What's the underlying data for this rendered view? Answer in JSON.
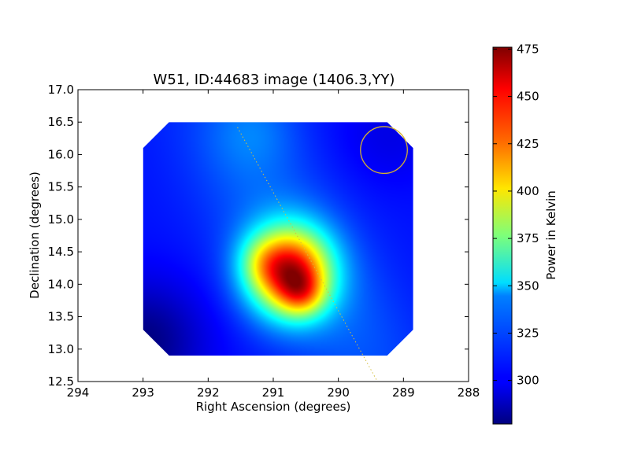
{
  "chart_data": {
    "type": "heatmap",
    "title": "W51, ID:44683 image (1406.3,YY)",
    "xlabel": "Right Ascension (degrees)",
    "ylabel": "Declination (degrees)",
    "xlim": [
      294,
      288
    ],
    "ylim": [
      12.5,
      17.0
    ],
    "x_ticks": [
      "294",
      "293",
      "292",
      "291",
      "290",
      "289",
      "288"
    ],
    "y_ticks": [
      "12.5",
      "13.0",
      "13.5",
      "14.0",
      "14.5",
      "15.0",
      "15.5",
      "16.0",
      "16.5",
      "17.0"
    ],
    "x_tick_values": [
      294,
      293,
      292,
      291,
      290,
      289,
      288
    ],
    "y_tick_values": [
      12.5,
      13.0,
      13.5,
      14.0,
      14.5,
      15.0,
      15.5,
      16.0,
      16.5,
      17.0
    ],
    "colormap": "jet",
    "colorbar": {
      "label": "Power in Kelvin",
      "range": [
        277,
        476
      ],
      "ticks": [
        "300",
        "325",
        "350",
        "375",
        "400",
        "425",
        "450",
        "475"
      ],
      "tick_values": [
        300,
        325,
        350,
        375,
        400,
        425,
        450,
        475
      ]
    },
    "map": {
      "ra_range": [
        293.0,
        288.85
      ],
      "dec_range": [
        12.9,
        16.5
      ],
      "corner_cut_degrees": 0.4,
      "background_level": 305,
      "low_region": {
        "ra": 293.0,
        "dec": 13.1,
        "level": 277
      },
      "peak": {
        "ra": 290.75,
        "dec": 14.2,
        "level": 470
      },
      "secondary_peak": {
        "ra": 290.55,
        "dec": 13.85,
        "level": 440
      }
    },
    "beam_circle": {
      "ra": 289.3,
      "dec": 16.07,
      "radius_deg": 0.36,
      "color": "#d4b030"
    },
    "galactic_plane_line": {
      "points": [
        [
          291.55,
          16.42
        ],
        [
          289.4,
          12.5
        ]
      ],
      "color": "#d4c040",
      "style": "dotted"
    },
    "grid": false
  }
}
